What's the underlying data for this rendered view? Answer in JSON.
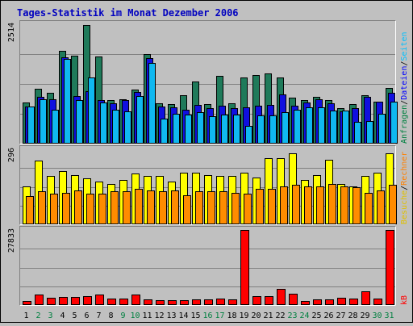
{
  "chart_data": {
    "type": "bar",
    "title": "Tages-Statistik im Monat Dezember 2006",
    "categories": [
      "1",
      "2",
      "3",
      "4",
      "5",
      "6",
      "7",
      "8",
      "9",
      "10",
      "11",
      "12",
      "13",
      "14",
      "15",
      "16",
      "17",
      "18",
      "19",
      "20",
      "21",
      "22",
      "23",
      "24",
      "25",
      "26",
      "27",
      "28",
      "29",
      "30",
      "31"
    ],
    "weekend_days": [
      "2",
      "3",
      "9",
      "10",
      "16",
      "17",
      "23",
      "24",
      "30",
      "31"
    ],
    "panels": [
      {
        "name": "requests-files-pages",
        "ymax_label": "2514",
        "ymax": 2514,
        "right_labels": [
          {
            "text": "Anfragen",
            "color": "#008040"
          },
          {
            "text": "/",
            "color": "#000000"
          },
          {
            "text": "Dateien",
            "color": "#0000ff"
          },
          {
            "text": "/",
            "color": "#000000"
          },
          {
            "text": "Seiten",
            "color": "#00c0ff"
          }
        ],
        "series": [
          {
            "name": "Anfragen",
            "color": "#1f7a5a",
            "values": [
              860,
              1150,
              1070,
              1950,
              1860,
              2500,
              1840,
              920,
              930,
              1140,
              1880,
              850,
              840,
              1020,
              1310,
              840,
              1420,
              850,
              1400,
              1450,
              1470,
              1400,
              960,
              920,
              990,
              920,
              740,
              830,
              1020,
              880,
              1170
            ]
          },
          {
            "name": "Dateien",
            "color": "#1010e0",
            "values": [
              780,
              980,
              930,
              1810,
              1010,
              1110,
              920,
              850,
              910,
              1090,
              1800,
              780,
              760,
              720,
              810,
              750,
              800,
              750,
              760,
              800,
              810,
              1040,
              800,
              860,
              930,
              850,
              680,
              750,
              980,
              880,
              1070
            ]
          },
          {
            "name": "Seiten",
            "color": "#10b8f0",
            "values": [
              780,
              930,
              720,
              1780,
              920,
              1400,
              870,
              720,
              680,
              1000,
              1700,
              520,
              630,
              620,
              660,
              580,
              620,
              610,
              380,
              590,
              600,
              660,
              720,
              760,
              770,
              700,
              690,
              460,
              480,
              630,
              880
            ]
          }
        ]
      },
      {
        "name": "visits-hosts",
        "ymax_label": "296",
        "ymax": 296,
        "right_labels": [
          {
            "text": "Besuche",
            "color": "#e0c000"
          },
          {
            "text": "/",
            "color": "#000000"
          },
          {
            "text": "Rechner",
            "color": "#ff8000"
          }
        ],
        "series": [
          {
            "name": "Besuche",
            "color": "#ffff00",
            "values": [
              150,
              250,
              190,
              210,
              195,
              180,
              170,
              160,
              175,
              200,
              190,
              190,
              170,
              205,
              205,
              195,
              190,
              190,
              205,
              185,
              260,
              260,
              280,
              175,
              195,
              255,
              160,
              150,
              190,
              205,
              280
            ]
          },
          {
            "name": "Rechner",
            "color": "#ff8c00",
            "values": [
              110,
              130,
              120,
              125,
              135,
              120,
              120,
              130,
              130,
              140,
              135,
              130,
              135,
              115,
              130,
              130,
              130,
              125,
              120,
              140,
              140,
              150,
              155,
              150,
              150,
              160,
              150,
              145,
              125,
              135,
              155
            ]
          }
        ]
      },
      {
        "name": "kilobytes",
        "ymax_label": "27833",
        "ymax": 27833,
        "right_labels": [
          {
            "text": "kB",
            "color": "#ff0000"
          }
        ],
        "series": [
          {
            "name": "kB",
            "color": "#ff0000",
            "values": [
              1500,
              3800,
              2800,
              2900,
              2900,
              3200,
              4000,
              2500,
              2500,
              4000,
              2200,
              1900,
              1800,
              1700,
              2000,
              2000,
              2500,
              2200,
              27833,
              3200,
              3300,
              5900,
              4100,
              1400,
              2000,
              2200,
              2600,
              2400,
              5000,
              2400,
              27833
            ]
          }
        ]
      }
    ]
  }
}
